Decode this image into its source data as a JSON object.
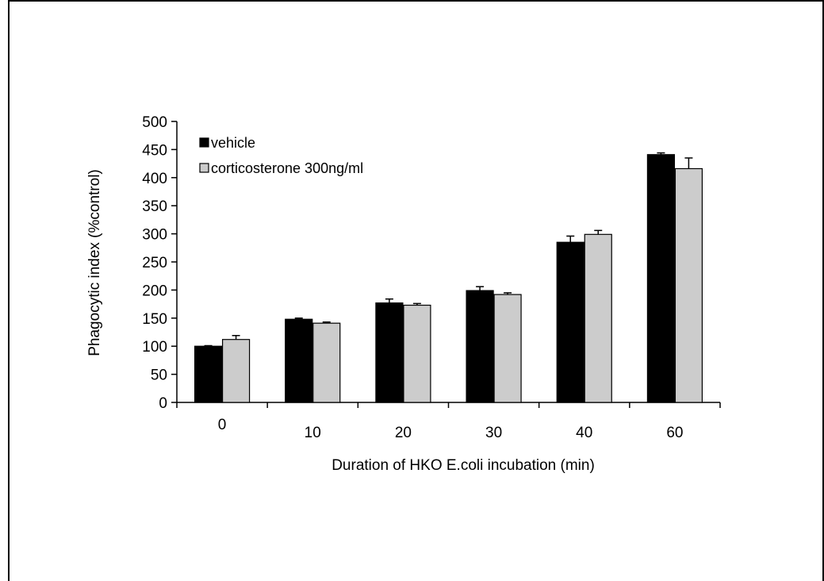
{
  "chart_data": {
    "type": "bar",
    "categories": [
      "0",
      "10",
      "20",
      "30",
      "40",
      "60"
    ],
    "series": [
      {
        "name": "vehicle",
        "color": "#000000",
        "values": [
          100,
          148,
          177,
          199,
          285,
          441
        ],
        "errors": [
          1,
          2,
          7,
          7,
          11,
          3
        ]
      },
      {
        "name": "corticosterone 300ng/ml",
        "color": "#cccccc",
        "values": [
          112,
          141,
          173,
          192,
          299,
          416
        ],
        "errors": [
          7,
          2,
          3,
          3,
          7,
          19
        ]
      }
    ],
    "xlabel": "Duration of HKO E.coli incubation (min)",
    "ylabel": "Phagocytic index (%control)",
    "ylim": [
      0,
      500
    ],
    "yticks": [
      0,
      50,
      100,
      150,
      200,
      250,
      300,
      350,
      400,
      450,
      500
    ],
    "legend_position": "top-left",
    "grid": false
  }
}
